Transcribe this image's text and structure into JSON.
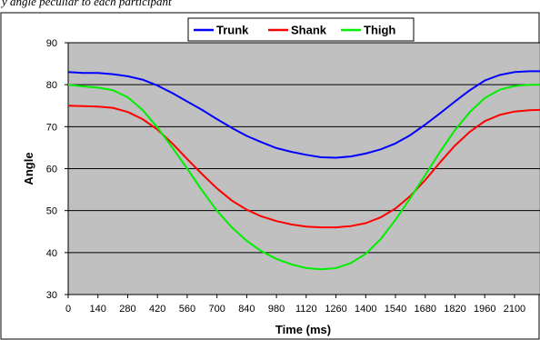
{
  "caption": "y angle peculiar to each participant",
  "chart_data": {
    "type": "line",
    "title": "",
    "xlabel": "Time (ms)",
    "ylabel": "Angle",
    "ylim": [
      30,
      90
    ],
    "xlim": [
      0,
      2220
    ],
    "yticks": [
      30,
      40,
      50,
      60,
      70,
      80,
      90
    ],
    "xticks": [
      0,
      140,
      280,
      420,
      560,
      700,
      840,
      980,
      1120,
      1260,
      1400,
      1540,
      1680,
      1820,
      1960,
      2100
    ],
    "grid": true,
    "legend_position": "top",
    "x": [
      0,
      70,
      140,
      210,
      280,
      350,
      420,
      490,
      560,
      630,
      700,
      770,
      840,
      910,
      980,
      1050,
      1120,
      1190,
      1260,
      1330,
      1400,
      1470,
      1540,
      1610,
      1680,
      1750,
      1820,
      1890,
      1960,
      2030,
      2100,
      2170,
      2220
    ],
    "series": [
      {
        "name": "Trunk",
        "color": "#0000ff",
        "values": [
          83.0,
          82.8,
          82.8,
          82.5,
          82.0,
          81.2,
          79.8,
          78.0,
          76.0,
          74.0,
          71.8,
          69.7,
          67.8,
          66.3,
          64.9,
          64.0,
          63.3,
          62.7,
          62.6,
          62.9,
          63.6,
          64.6,
          66.0,
          68.0,
          70.5,
          73.2,
          76.0,
          78.7,
          81.0,
          82.3,
          83.0,
          83.2,
          83.2
        ]
      },
      {
        "name": "Shank",
        "color": "#ff0000",
        "values": [
          75.0,
          74.9,
          74.8,
          74.5,
          73.5,
          71.8,
          69.3,
          66.0,
          62.3,
          58.7,
          55.3,
          52.4,
          50.2,
          48.6,
          47.5,
          46.7,
          46.2,
          46.0,
          46.0,
          46.3,
          47.0,
          48.4,
          50.5,
          53.5,
          57.3,
          61.5,
          65.5,
          68.8,
          71.3,
          72.8,
          73.6,
          73.9,
          74.0
        ]
      },
      {
        "name": "Thigh",
        "color": "#00ee00",
        "values": [
          80.0,
          79.6,
          79.3,
          78.7,
          77.0,
          74.0,
          69.8,
          65.0,
          60.0,
          54.8,
          50.0,
          46.0,
          42.8,
          40.3,
          38.5,
          37.2,
          36.3,
          36.0,
          36.3,
          37.5,
          39.7,
          43.2,
          47.8,
          53.0,
          58.5,
          64.0,
          69.2,
          73.5,
          76.8,
          78.8,
          79.7,
          80.0,
          80.0
        ]
      }
    ],
    "colors": {
      "plot_background": "#c0c0c0",
      "gridline": "#000000",
      "outer_border": "#000000"
    }
  }
}
